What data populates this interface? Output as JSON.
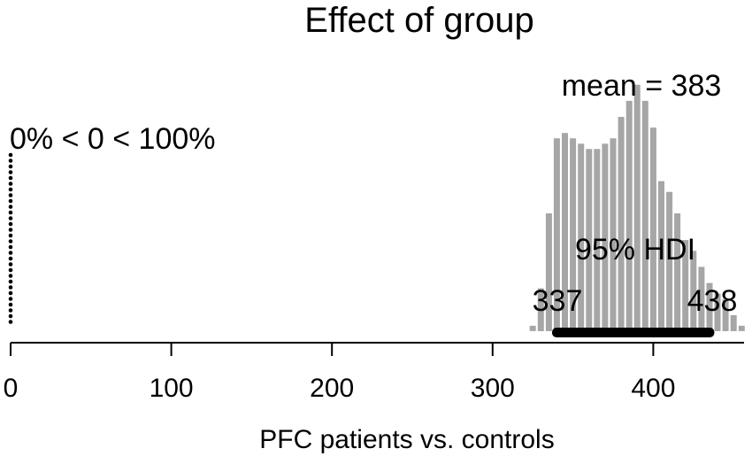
{
  "chart_data": {
    "type": "histogram",
    "title": "Effect of group",
    "xlabel": "PFC patients vs. controls",
    "ylabel": "",
    "xlim": [
      0,
      460
    ],
    "x_ticks": [
      0,
      100,
      200,
      300,
      400
    ],
    "x_tick_labels": [
      "0",
      "100",
      "200",
      "300",
      "400"
    ],
    "bin_width": 5,
    "bins": [
      {
        "x": 325,
        "count": 1
      },
      {
        "x": 330,
        "count": 8
      },
      {
        "x": 335,
        "count": 22
      },
      {
        "x": 340,
        "count": 36
      },
      {
        "x": 345,
        "count": 37
      },
      {
        "x": 350,
        "count": 36
      },
      {
        "x": 355,
        "count": 35
      },
      {
        "x": 360,
        "count": 34
      },
      {
        "x": 365,
        "count": 34
      },
      {
        "x": 370,
        "count": 35
      },
      {
        "x": 375,
        "count": 36
      },
      {
        "x": 380,
        "count": 40
      },
      {
        "x": 385,
        "count": 43
      },
      {
        "x": 390,
        "count": 46
      },
      {
        "x": 395,
        "count": 43
      },
      {
        "x": 400,
        "count": 38
      },
      {
        "x": 405,
        "count": 28
      },
      {
        "x": 410,
        "count": 26
      },
      {
        "x": 415,
        "count": 22
      },
      {
        "x": 420,
        "count": 17
      },
      {
        "x": 425,
        "count": 15
      },
      {
        "x": 430,
        "count": 12
      },
      {
        "x": 435,
        "count": 9
      },
      {
        "x": 440,
        "count": 7
      },
      {
        "x": 445,
        "count": 6
      },
      {
        "x": 450,
        "count": 3
      },
      {
        "x": 455,
        "count": 1
      }
    ],
    "bar_color": "#a6a6a6",
    "mean_label": "mean = 383",
    "comparison_value": 0,
    "comparison_label": "0% < 0 < 100%",
    "hdi": {
      "label": "95% HDI",
      "low": 337,
      "high": 438,
      "low_label": "337",
      "high_label": "438"
    }
  }
}
